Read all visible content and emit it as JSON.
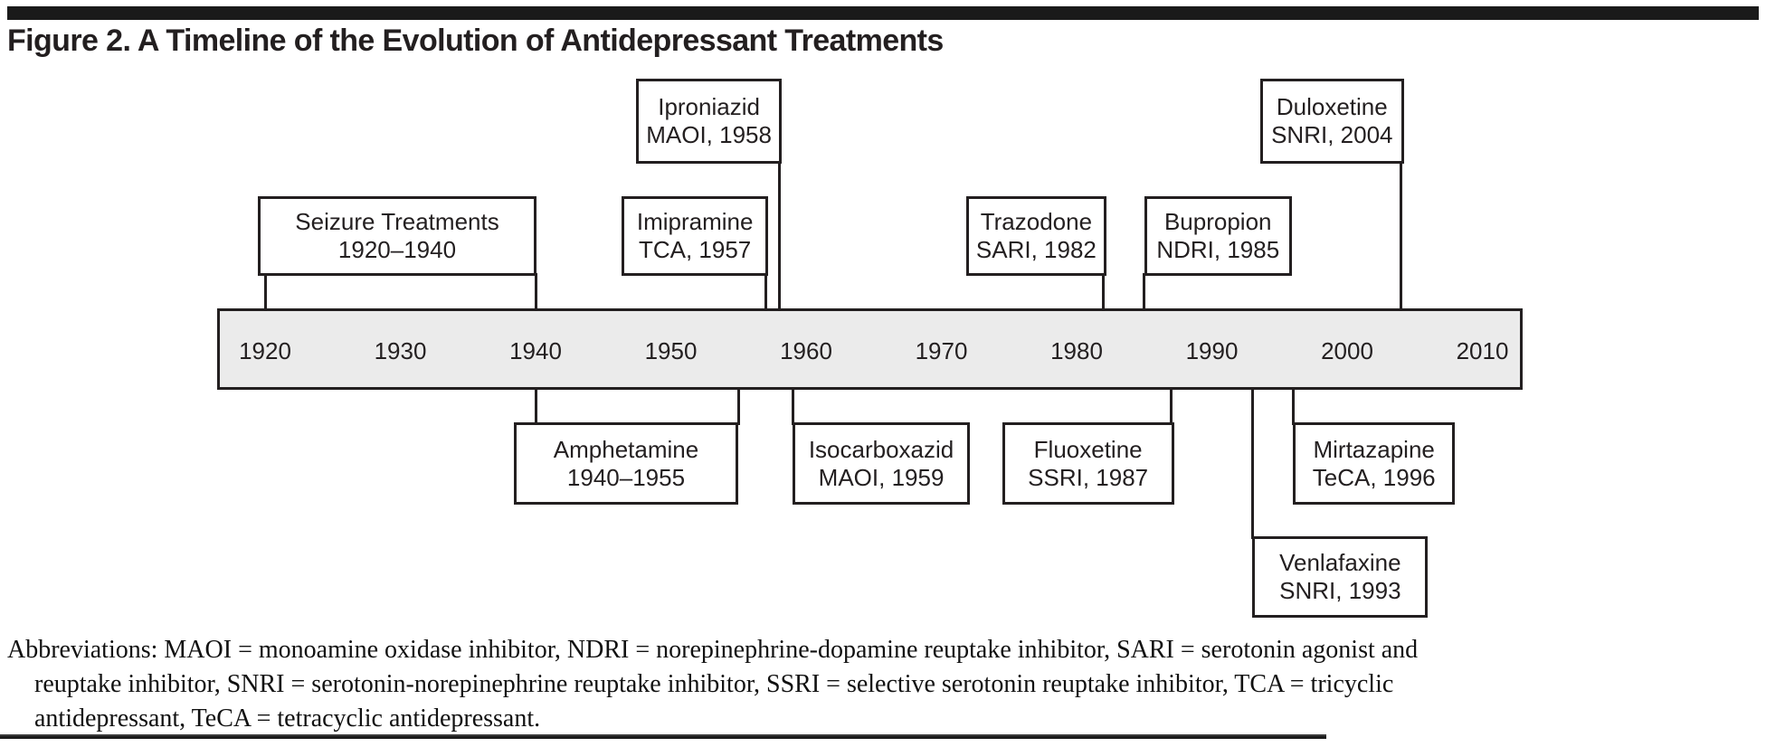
{
  "figure": {
    "title": "Figure 2. A Timeline of the Evolution of Antidepressant Treatments"
  },
  "colors": {
    "ink": "#231f20",
    "timeline_bar_fill": "#ebebeb",
    "box_fill": "#ffffff"
  },
  "timeline": {
    "axis_years": [
      "1920",
      "1930",
      "1940",
      "1950",
      "1960",
      "1970",
      "1980",
      "1990",
      "2000",
      "2010"
    ],
    "events_above": [
      {
        "id": "seizure-treatments",
        "name": "Seizure Treatments",
        "detail": "1920–1940",
        "years": [
          1920,
          1940
        ],
        "row": "mid"
      },
      {
        "id": "iproniazid",
        "name": "Iproniazid",
        "detail": "MAOI, 1958",
        "years": [
          1958
        ],
        "row": "top"
      },
      {
        "id": "imipramine",
        "name": "Imipramine",
        "detail": "TCA, 1957",
        "years": [
          1957
        ],
        "row": "mid"
      },
      {
        "id": "trazodone",
        "name": "Trazodone",
        "detail": "SARI, 1982",
        "years": [
          1982
        ],
        "row": "mid"
      },
      {
        "id": "bupropion",
        "name": "Bupropion",
        "detail": "NDRI, 1985",
        "years": [
          1985
        ],
        "row": "mid"
      },
      {
        "id": "duloxetine",
        "name": "Duloxetine",
        "detail": "SNRI, 2004",
        "years": [
          2004
        ],
        "row": "top"
      }
    ],
    "events_below": [
      {
        "id": "amphetamine",
        "name": "Amphetamine",
        "detail": "1940–1955",
        "years": [
          1940,
          1955
        ],
        "row": "low"
      },
      {
        "id": "isocarboxazid",
        "name": "Isocarboxazid",
        "detail": "MAOI, 1959",
        "years": [
          1959
        ],
        "row": "low"
      },
      {
        "id": "fluoxetine",
        "name": "Fluoxetine",
        "detail": "SSRI, 1987",
        "years": [
          1987
        ],
        "row": "low"
      },
      {
        "id": "mirtazapine",
        "name": "Mirtazapine",
        "detail": "TeCA, 1996",
        "years": [
          1996
        ],
        "row": "low"
      },
      {
        "id": "venlafaxine",
        "name": "Venlafaxine",
        "detail": "SNRI, 1993",
        "years": [
          1993
        ],
        "row": "lower"
      }
    ]
  },
  "footnote": {
    "lines": [
      "Abbreviations: MAOI = monoamine oxidase inhibitor, NDRI = norepinephrine-dopamine reuptake inhibitor, SARI = serotonin agonist and",
      "reuptake inhibitor, SNRI = serotonin-norepinephrine reuptake inhibitor, SSRI = selective serotonin reuptake inhibitor, TCA = tricyclic",
      "antidepressant, TeCA = tetracyclic antidepressant."
    ]
  }
}
